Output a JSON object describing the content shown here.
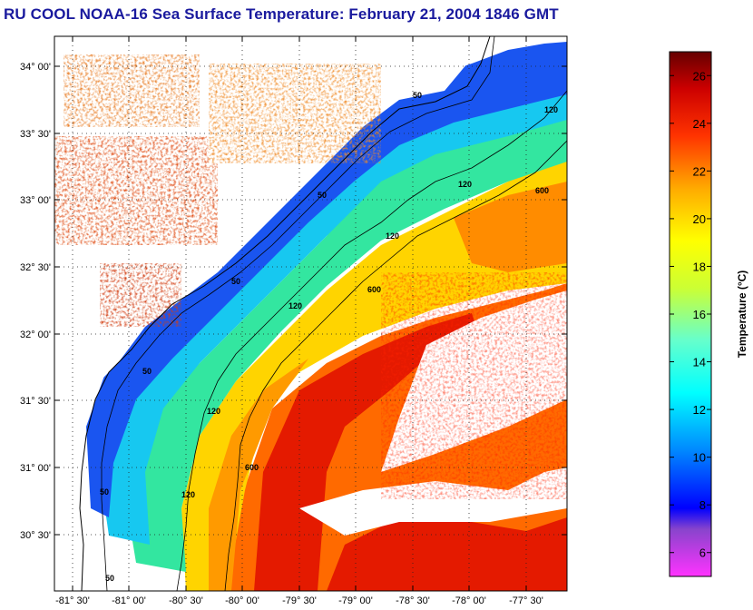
{
  "title": "RU COOL  NOAA-16  Sea Surface Temperature:  February 21, 2004 1846 GMT",
  "map": {
    "lat_labels": [
      "34° 00'",
      "33° 30'",
      "33° 00'",
      "32° 30'",
      "32° 00'",
      "31° 30'",
      "31° 00'",
      "30° 30'"
    ],
    "lon_labels": [
      "-81° 30'",
      "-81° 00'",
      "-80° 30'",
      "-80° 00'",
      "-79° 30'",
      "-79° 00'",
      "-78° 30'",
      "-78° 00'",
      "-77° 30'"
    ],
    "contour_labels": [
      "50",
      "50",
      "50",
      "50",
      "50",
      "50",
      "120",
      "120",
      "120",
      "120",
      "120",
      "120",
      "600",
      "600",
      "600"
    ],
    "grid": "dotted"
  },
  "colorbar": {
    "label": "Temperature (°C)",
    "ticks": [
      "26",
      "24",
      "22",
      "20",
      "18",
      "16",
      "14",
      "12",
      "10",
      "8",
      "6"
    ],
    "range": [
      5,
      27
    ],
    "colors": [
      "#ff33ff",
      "#8844cc",
      "#0000ff",
      "#0088ff",
      "#00ffff",
      "#66ffcc",
      "#ccff33",
      "#ffff00",
      "#ffaa00",
      "#ff3300",
      "#cc0000",
      "#660000"
    ]
  }
}
